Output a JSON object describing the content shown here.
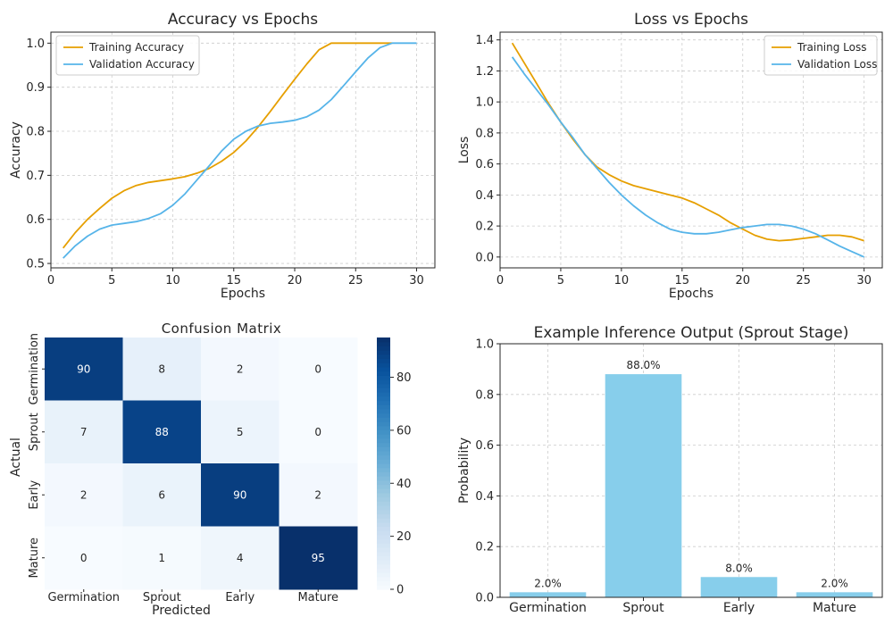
{
  "chart_data": [
    {
      "type": "line",
      "title": "Accuracy vs Epochs",
      "xlabel": "Epochs",
      "ylabel": "Accuracy",
      "xlim": [
        0,
        31.5
      ],
      "ylim": [
        0.49,
        1.025
      ],
      "xticks": [
        0,
        5,
        10,
        15,
        20,
        25,
        30
      ],
      "yticks": [
        0.5,
        0.6,
        0.7,
        0.8,
        0.9,
        1.0
      ],
      "ytick_format": 1,
      "grid": true,
      "legend_position": "top-left",
      "x": [
        1,
        2,
        3,
        4,
        5,
        6,
        7,
        8,
        9,
        10,
        11,
        12,
        13,
        14,
        15,
        16,
        17,
        18,
        19,
        20,
        21,
        22,
        23,
        24,
        25,
        26,
        27,
        28,
        29,
        30
      ],
      "series": [
        {
          "name": "Training Accuracy",
          "color": "#E69F00",
          "values": [
            0.535,
            0.57,
            0.6,
            0.625,
            0.648,
            0.665,
            0.677,
            0.684,
            0.688,
            0.692,
            0.697,
            0.705,
            0.716,
            0.732,
            0.752,
            0.778,
            0.81,
            0.845,
            0.882,
            0.918,
            0.953,
            0.985,
            1.0,
            1.0,
            1.0,
            1.0,
            1.0,
            1.0,
            null,
            null
          ]
        },
        {
          "name": "Validation Accuracy",
          "color": "#56B4E9",
          "values": [
            0.512,
            0.54,
            0.562,
            0.578,
            0.587,
            0.591,
            0.595,
            0.602,
            0.613,
            0.632,
            0.658,
            0.69,
            0.722,
            0.755,
            0.782,
            0.8,
            0.812,
            0.818,
            0.821,
            0.825,
            0.833,
            0.848,
            0.872,
            0.903,
            0.935,
            0.966,
            0.99,
            1.0,
            1.0,
            1.0
          ]
        }
      ]
    },
    {
      "type": "line",
      "title": "Loss vs Epochs",
      "xlabel": "Epochs",
      "ylabel": "Loss",
      "xlim": [
        0,
        31.5
      ],
      "ylim": [
        -0.07,
        1.45
      ],
      "xticks": [
        0,
        5,
        10,
        15,
        20,
        25,
        30
      ],
      "yticks": [
        0.0,
        0.2,
        0.4,
        0.6,
        0.8,
        1.0,
        1.2,
        1.4
      ],
      "ytick_format": 1,
      "grid": true,
      "legend_position": "top-right",
      "x": [
        1,
        2,
        3,
        4,
        5,
        6,
        7,
        8,
        9,
        10,
        11,
        12,
        13,
        14,
        15,
        16,
        17,
        18,
        19,
        20,
        21,
        22,
        23,
        24,
        25,
        26,
        27,
        28,
        29,
        30
      ],
      "series": [
        {
          "name": "Training Loss",
          "color": "#E69F00",
          "values": [
            1.38,
            1.25,
            1.12,
            0.99,
            0.87,
            0.76,
            0.66,
            0.58,
            0.53,
            0.49,
            0.46,
            0.44,
            0.42,
            0.4,
            0.38,
            0.35,
            0.31,
            0.27,
            0.22,
            0.18,
            0.14,
            0.115,
            0.105,
            0.11,
            0.12,
            0.13,
            0.14,
            0.14,
            0.13,
            0.105
          ]
        },
        {
          "name": "Validation Loss",
          "color": "#56B4E9",
          "values": [
            1.29,
            1.18,
            1.08,
            0.98,
            0.87,
            0.77,
            0.66,
            0.57,
            0.48,
            0.4,
            0.33,
            0.27,
            0.22,
            0.18,
            0.16,
            0.15,
            0.15,
            0.16,
            0.175,
            0.19,
            0.2,
            0.21,
            0.21,
            0.2,
            0.18,
            0.15,
            0.11,
            0.07,
            0.035,
            0.0
          ]
        }
      ]
    },
    {
      "type": "heatmap",
      "title": "Confusion Matrix",
      "xlabel": "Predicted",
      "ylabel": "Actual",
      "x_categories": [
        "Germination",
        "Sprout",
        "Early",
        "Mature"
      ],
      "y_categories": [
        "Germination",
        "Sprout",
        "Early",
        "Mature"
      ],
      "values": [
        [
          90,
          8,
          2,
          0
        ],
        [
          7,
          88,
          5,
          0
        ],
        [
          2,
          6,
          90,
          2
        ],
        [
          0,
          1,
          4,
          95
        ]
      ],
      "colorbar_ticks": [
        0,
        20,
        40,
        60,
        80
      ],
      "colorbar_range": [
        0,
        95
      ],
      "colormap": "Blues"
    },
    {
      "type": "bar",
      "title": "Example Inference Output (Sprout Stage)",
      "xlabel": "",
      "ylabel": "Probability",
      "categories": [
        "Germination",
        "Sprout",
        "Early",
        "Mature"
      ],
      "values": [
        0.02,
        0.88,
        0.08,
        0.02
      ],
      "data_labels": [
        "2.0%",
        "88.0%",
        "8.0%",
        "2.0%"
      ],
      "ylim": [
        0,
        1.0
      ],
      "yticks": [
        0.0,
        0.2,
        0.4,
        0.6,
        0.8,
        1.0
      ],
      "ytick_format": 1,
      "grid": true,
      "color": "#87CEEB"
    }
  ]
}
